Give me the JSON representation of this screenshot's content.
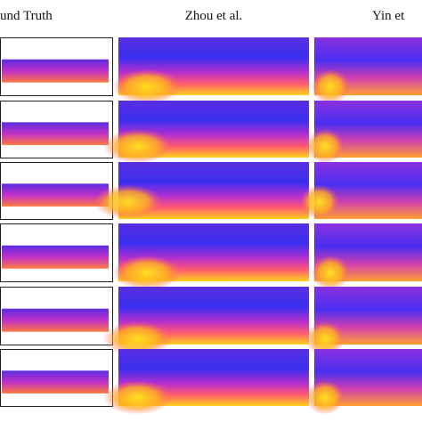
{
  "header": {
    "columns": [
      "und Truth",
      "Zhou et al.",
      "Yin et"
    ]
  }
}
